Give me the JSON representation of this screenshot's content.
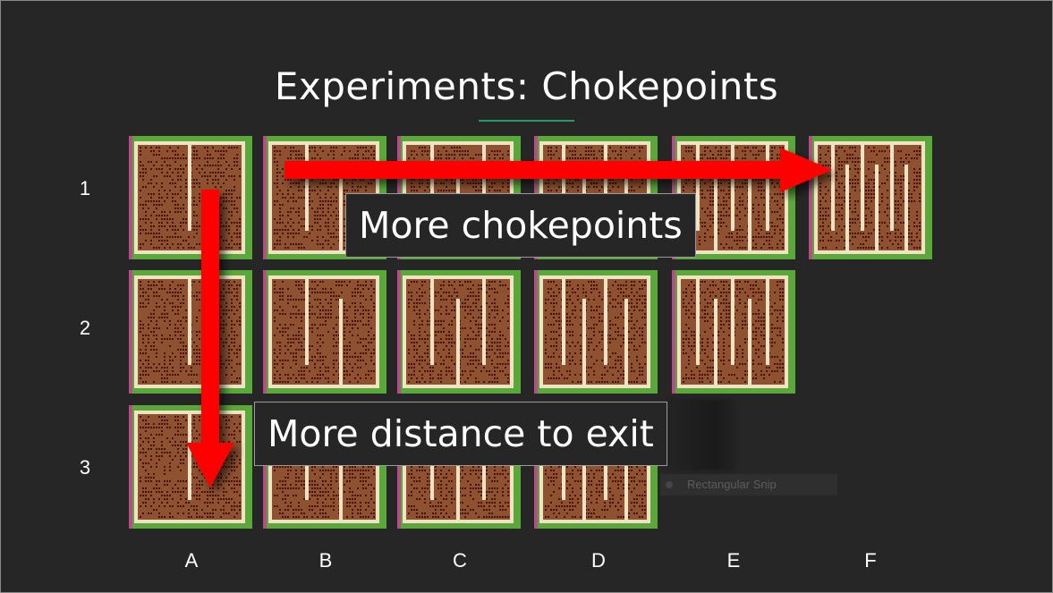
{
  "title": "Experiments: Chokepoints",
  "row_labels": [
    "1",
    "2",
    "3"
  ],
  "column_labels": [
    "A",
    "B",
    "C",
    "D",
    "E",
    "F"
  ],
  "callouts": {
    "horizontal": "More chokepoints",
    "vertical": "More distance to exit"
  },
  "snip_label": "Rectangular Snip",
  "colors": {
    "background": "#262626",
    "maze_floor": "#8e5230",
    "maze_wall": "#efe3c4",
    "maze_outer": "#5aa83a",
    "maze_left_edge": "#b54d86",
    "agent_dot": "#4a1208",
    "arrow": "#ff0000",
    "title_underline": "#1f9e6b"
  },
  "mazes": [
    {
      "row": 1,
      "col": "A",
      "walls": 1
    },
    {
      "row": 1,
      "col": "B",
      "walls": 2
    },
    {
      "row": 1,
      "col": "C",
      "walls": 3
    },
    {
      "row": 1,
      "col": "D",
      "walls": 4
    },
    {
      "row": 1,
      "col": "E",
      "walls": 5
    },
    {
      "row": 1,
      "col": "F",
      "walls": 6
    },
    {
      "row": 2,
      "col": "A",
      "walls": 1
    },
    {
      "row": 2,
      "col": "B",
      "walls": 2
    },
    {
      "row": 2,
      "col": "C",
      "walls": 3
    },
    {
      "row": 2,
      "col": "D",
      "walls": 4
    },
    {
      "row": 2,
      "col": "E",
      "walls": 5
    },
    {
      "row": 3,
      "col": "A",
      "walls": 1
    },
    {
      "row": 3,
      "col": "B",
      "walls": 2
    },
    {
      "row": 3,
      "col": "C",
      "walls": 3
    },
    {
      "row": 3,
      "col": "D",
      "walls": 4
    }
  ]
}
